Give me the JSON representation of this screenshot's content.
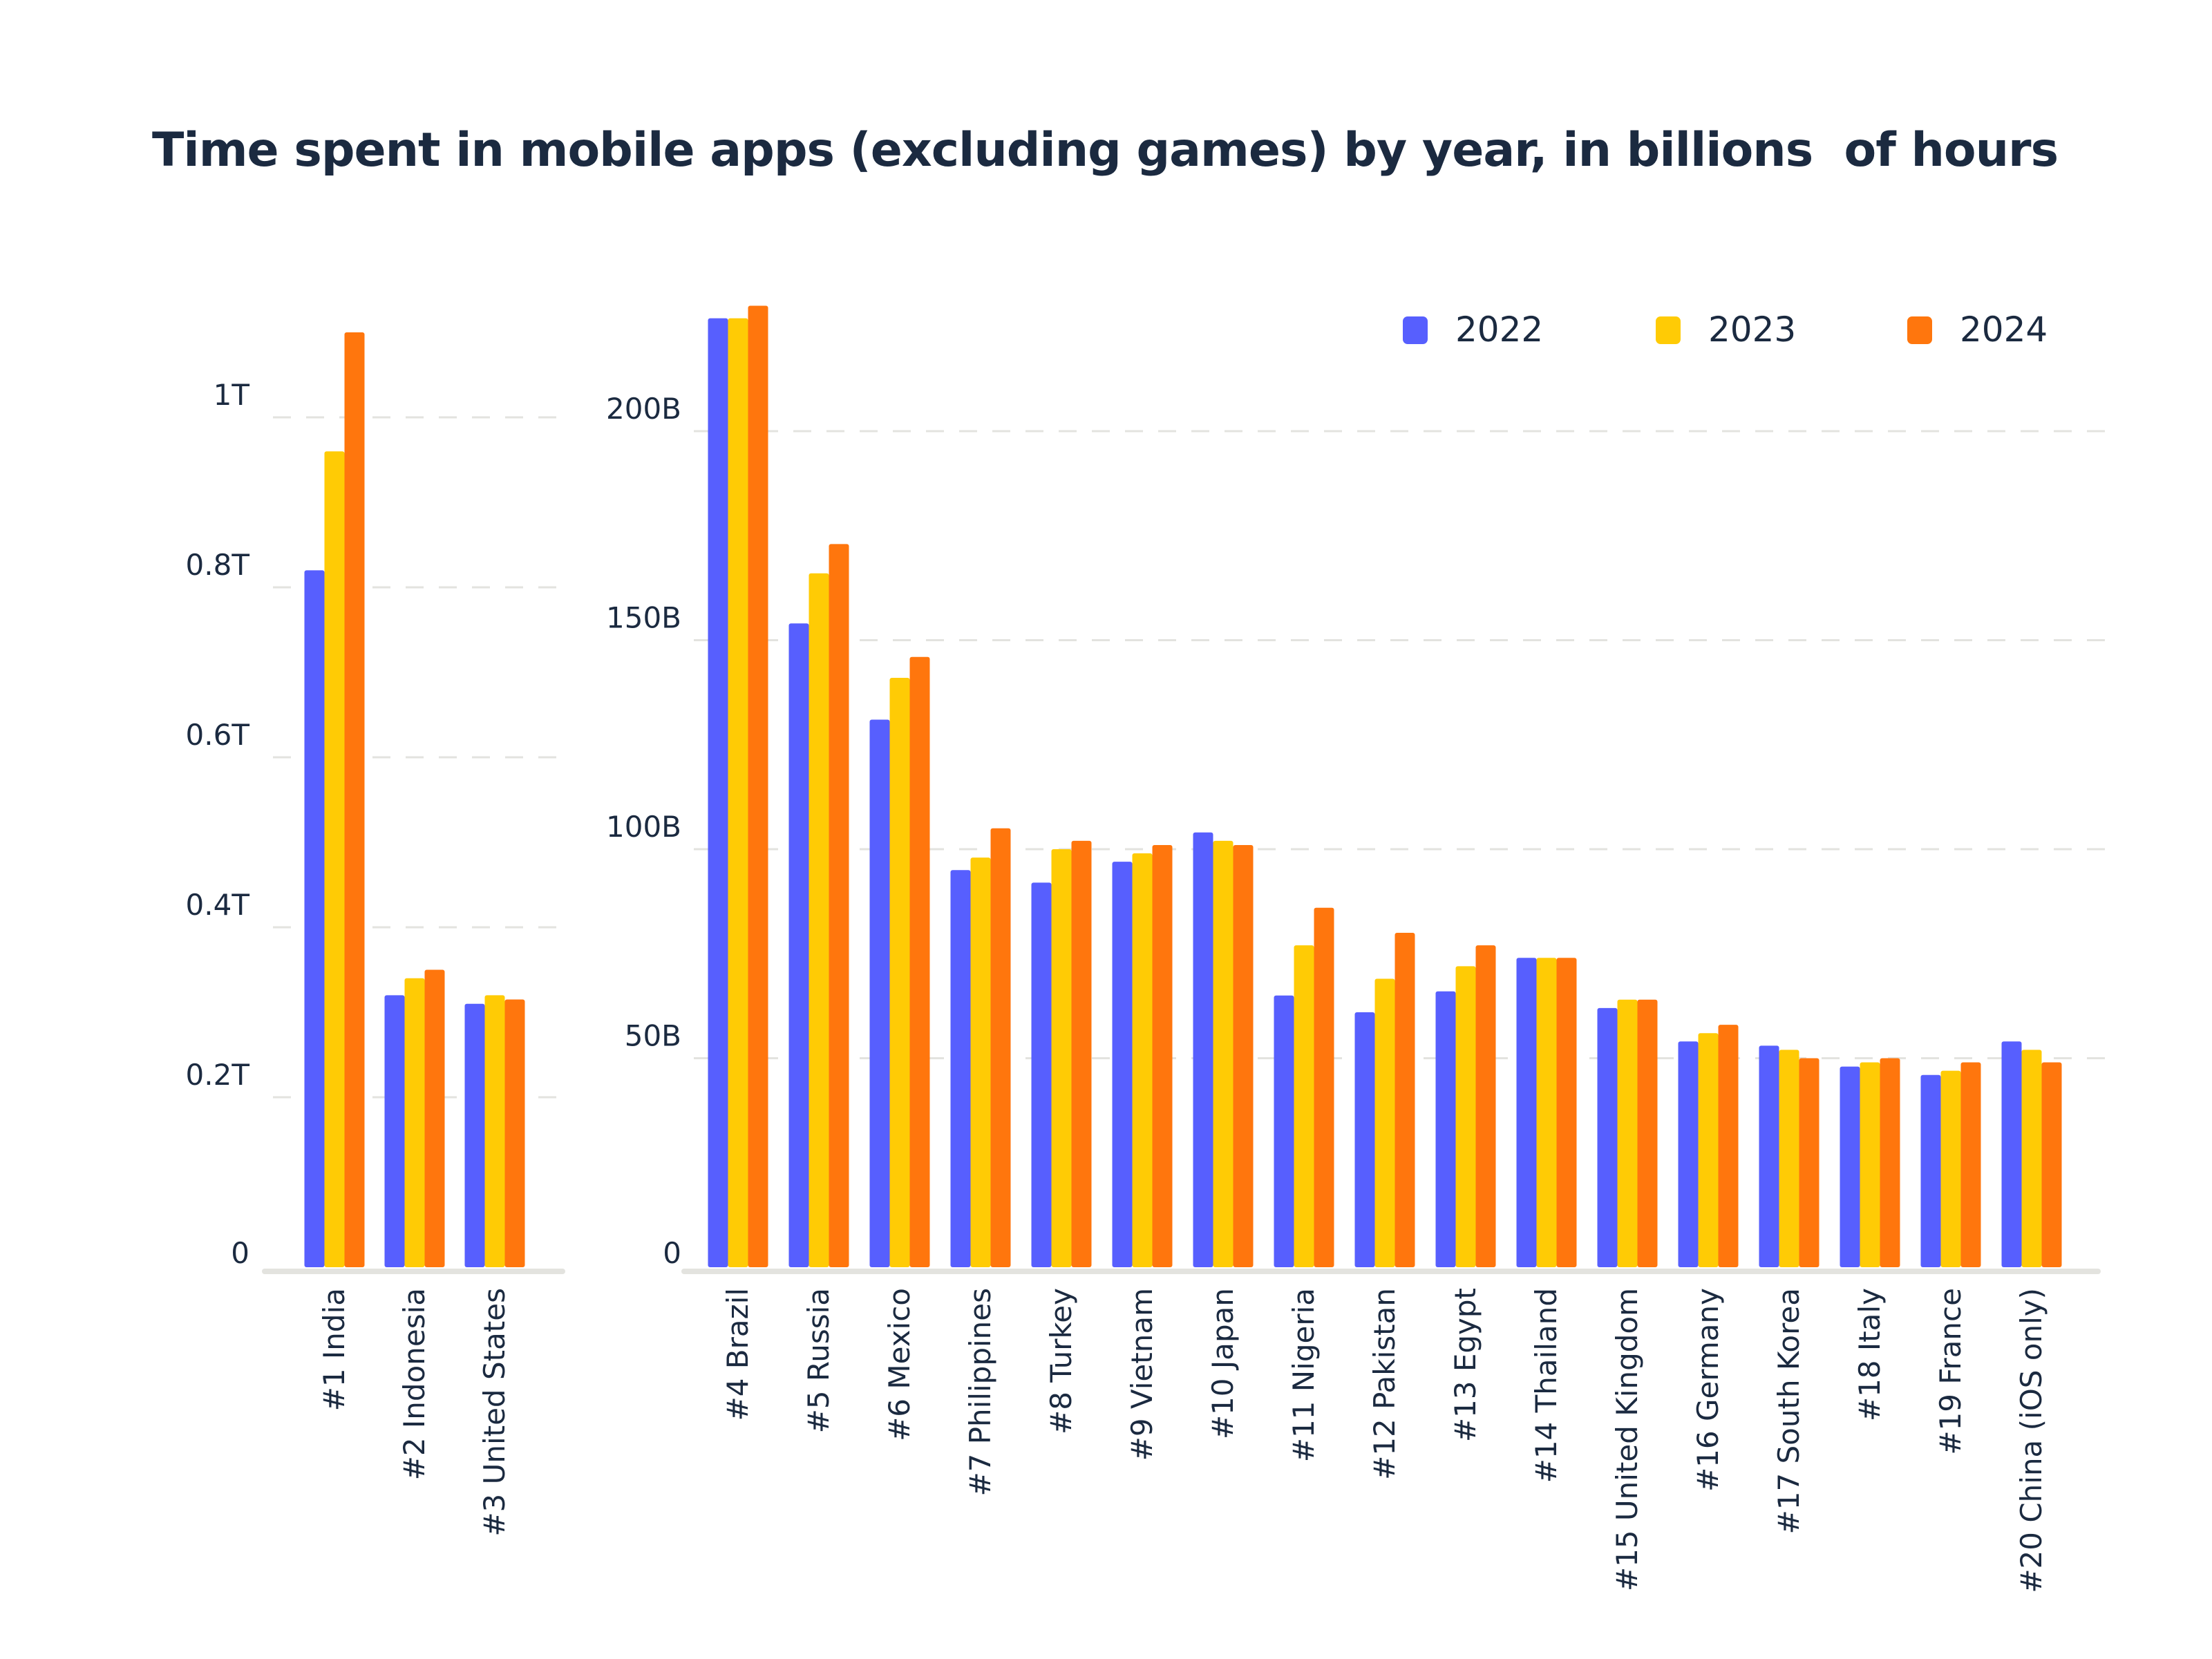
{
  "chart_data": [
    {
      "type": "bar",
      "title": "Time spent in mobile apps (excluding games) by year, in billions  of hours",
      "categories": [
        "#1 India",
        "#2 Indonesia",
        "#3 United States"
      ],
      "yticks": [
        "0",
        "0.2T",
        "0.4T",
        "0.6T",
        "0.8T",
        "1T"
      ],
      "ylim": [
        0,
        1.2
      ],
      "unit": "trillions of hours",
      "grid": true,
      "series": [
        {
          "name": "2022",
          "color": "#575ffe",
          "values": [
            0.82,
            0.32,
            0.31
          ]
        },
        {
          "name": "2023",
          "color": "#ffcb05",
          "values": [
            0.96,
            0.34,
            0.32
          ]
        },
        {
          "name": "2024",
          "color": "#ff760d",
          "values": [
            1.1,
            0.35,
            0.315
          ]
        }
      ]
    },
    {
      "type": "bar",
      "categories": [
        "#4 Brazil",
        "#5 Russia",
        "#6 Mexico",
        "#7 Philippines",
        "#8 Turkey",
        "#9 Vietnam",
        "#10 Japan",
        "#11 Nigeria",
        "#12 Pakistan",
        "#13 Egypt",
        "#14 Thailand",
        "#15 United Kingdom",
        "#16 Germany",
        "#17 South Korea",
        "#18 Italy",
        "#19 France",
        "#20 China (iOS only)"
      ],
      "yticks": [
        "0",
        "50B",
        "100B",
        "150B",
        "200B"
      ],
      "ylim": [
        0,
        240
      ],
      "unit": "billions of hours",
      "grid": true,
      "legend": {
        "position": "top-right",
        "items": [
          "2022",
          "2023",
          "2024"
        ]
      },
      "series": [
        {
          "name": "2022",
          "color": "#575ffe",
          "values": [
            227,
            154,
            131,
            95,
            92,
            97,
            104,
            65,
            61,
            66,
            74,
            62,
            54,
            53,
            48,
            46,
            54
          ]
        },
        {
          "name": "2023",
          "color": "#ffcb05",
          "values": [
            227,
            166,
            141,
            98,
            100,
            99,
            102,
            77,
            69,
            72,
            74,
            64,
            56,
            52,
            49,
            47,
            52
          ]
        },
        {
          "name": "2024",
          "color": "#ff760d",
          "values": [
            230,
            173,
            146,
            105,
            102,
            101,
            101,
            86,
            80,
            77,
            74,
            64,
            58,
            50,
            50,
            49,
            49
          ]
        }
      ]
    }
  ]
}
